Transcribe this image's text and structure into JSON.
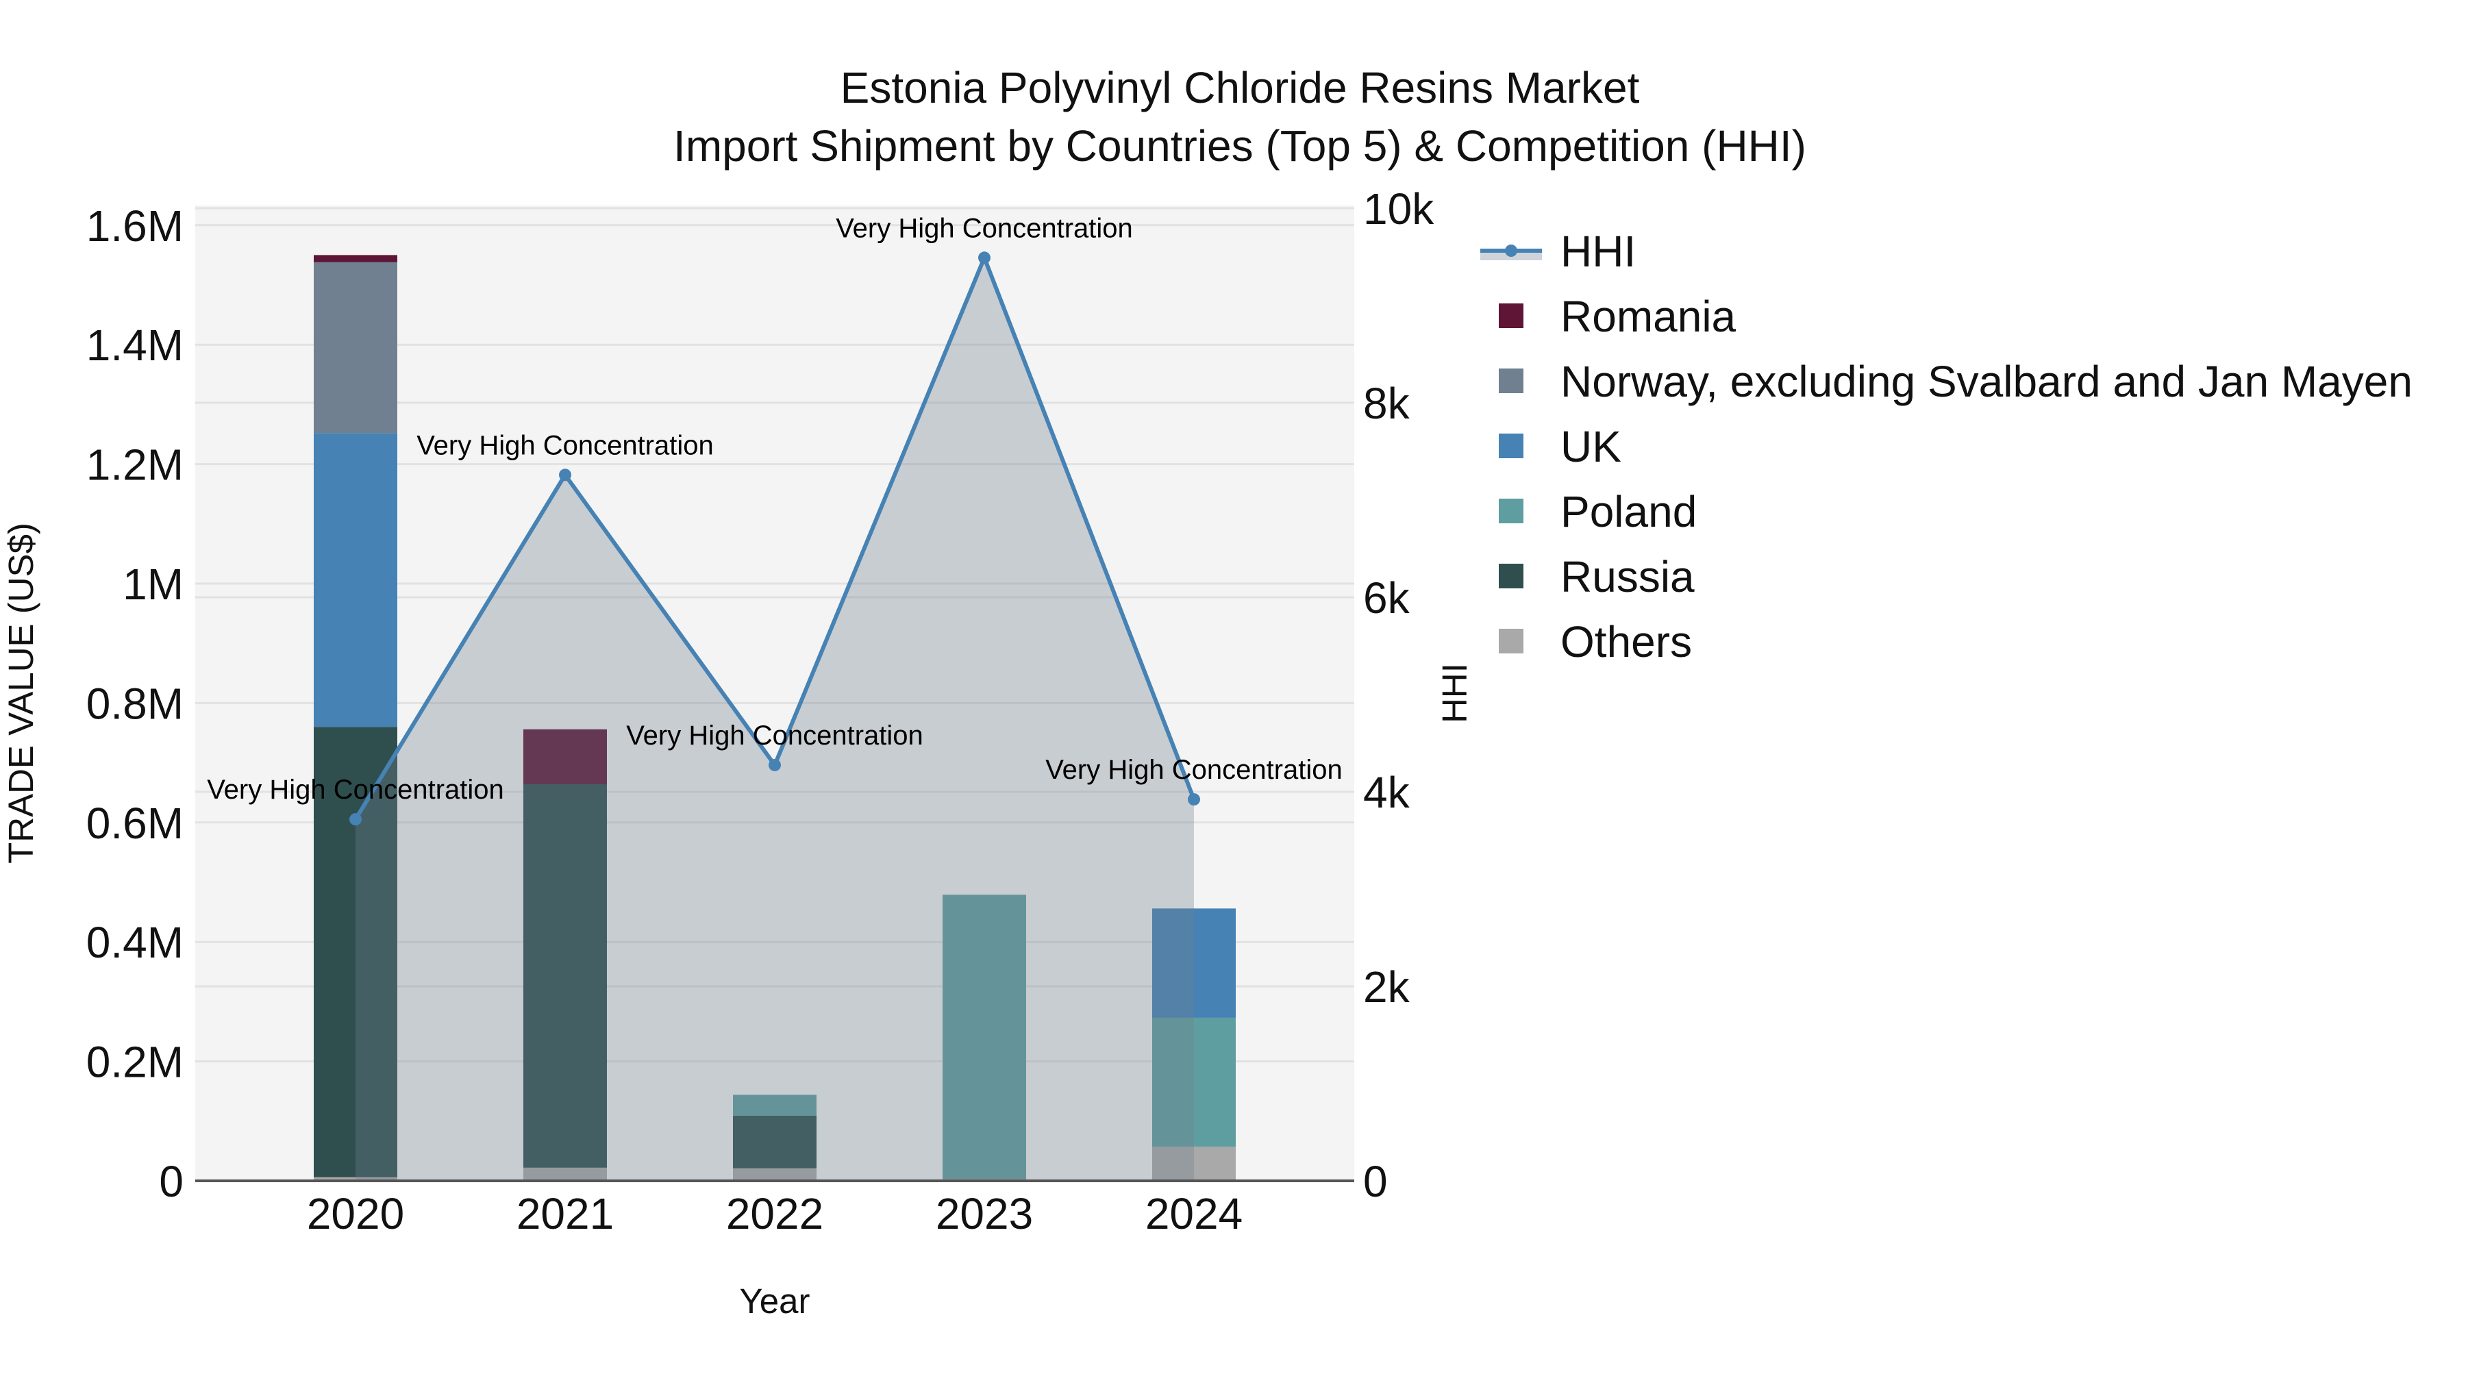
{
  "title": {
    "line1": "Estonia Polyvinyl Chloride Resins Market",
    "line2": "Import Shipment by Countries (Top 5) & Competition (HHI)"
  },
  "axes": {
    "x_title": "Year",
    "y_left_title": "TRADE VALUE (US$)",
    "y_right_title": "HHI",
    "x_ticks": [
      "2020",
      "2021",
      "2022",
      "2023",
      "2024"
    ],
    "y_left_ticks": [
      "0",
      "0.2M",
      "0.4M",
      "0.6M",
      "0.8M",
      "1M",
      "1.2M",
      "1.4M",
      "1.6M"
    ],
    "y_right_ticks": [
      "0",
      "2k",
      "4k",
      "6k",
      "8k",
      "10k"
    ]
  },
  "legend": {
    "items": [
      {
        "label": "HHI",
        "type": "line",
        "color": "#4682b4"
      },
      {
        "label": "Romania",
        "type": "bar",
        "color": "#5f1536"
      },
      {
        "label": "Norway, excluding Svalbard and Jan Mayen",
        "type": "bar",
        "color": "#708090"
      },
      {
        "label": "UK",
        "type": "bar",
        "color": "#4682b4"
      },
      {
        "label": "Poland",
        "type": "bar",
        "color": "#5f9ea0"
      },
      {
        "label": "Russia",
        "type": "bar",
        "color": "#2f4f4f"
      },
      {
        "label": "Others",
        "type": "bar",
        "color": "#a9a9a9"
      }
    ]
  },
  "colors": {
    "plot_bg": "#f4f4f4",
    "hhi_line": "#4682b4",
    "hhi_fill": "rgba(112,128,144,0.33)",
    "axis_line": "#555555"
  },
  "chart_data": {
    "type": "bar",
    "title": "Estonia Polyvinyl Chloride Resins Market — Import Shipment by Countries (Top 5) & Competition (HHI)",
    "xlabel": "Year",
    "ylabel": "TRADE VALUE (US$)",
    "y2label": "HHI",
    "categories": [
      "2020",
      "2021",
      "2022",
      "2023",
      "2024"
    ],
    "stacked": true,
    "ylim": [
      0,
      1630000
    ],
    "y2lim": [
      0,
      10000
    ],
    "grid": true,
    "legend_position": "right",
    "series": [
      {
        "name": "Others",
        "color": "#a9a9a9",
        "values": [
          6000,
          22000,
          21000,
          3000,
          57000
        ]
      },
      {
        "name": "Russia",
        "color": "#2f4f4f",
        "values": [
          754000,
          642000,
          88000,
          0,
          0
        ]
      },
      {
        "name": "Poland",
        "color": "#5f9ea0",
        "values": [
          0,
          0,
          35000,
          476000,
          216000
        ]
      },
      {
        "name": "UK",
        "color": "#4682b4",
        "values": [
          492000,
          0,
          0,
          0,
          183000
        ]
      },
      {
        "name": "Norway, excluding Svalbard and Jan Mayen",
        "color": "#708090",
        "values": [
          286000,
          0,
          0,
          0,
          0
        ]
      },
      {
        "name": "Romania",
        "color": "#5f1536",
        "values": [
          12000,
          92000,
          0,
          0,
          0
        ]
      }
    ],
    "line_series": {
      "name": "HHI",
      "axis": "right",
      "color": "#4682b4",
      "fill": "tozeroy",
      "values": [
        3717,
        7258,
        4275,
        9491,
        3922
      ],
      "annotations": [
        "Very High Concentration",
        "Very High Concentration",
        "Very High Concentration",
        "Very High Concentration",
        "Very High Concentration"
      ]
    }
  }
}
